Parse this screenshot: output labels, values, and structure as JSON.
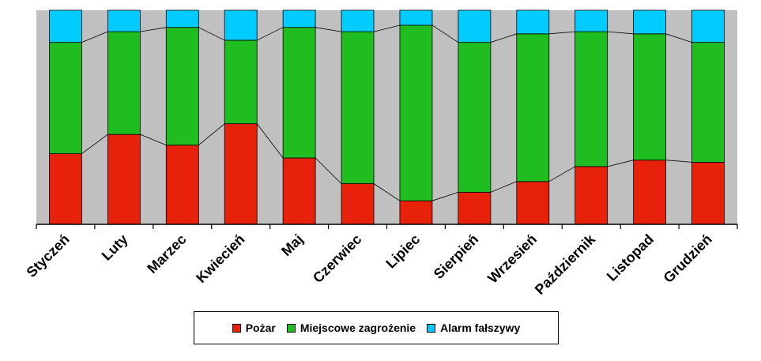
{
  "chart_data": {
    "type": "bar",
    "stacked": true,
    "percent_stacked": true,
    "categories": [
      "Styczeń",
      "Luty",
      "Marzec",
      "Kwiecień",
      "Maj",
      "Czerwiec",
      "Lipiec",
      "Sierpień",
      "Wrzesień",
      "Październik",
      "Listopad",
      "Grudzień"
    ],
    "series": [
      {
        "name": "Pożar",
        "color": "#e8220a",
        "values": [
          33,
          42,
          37,
          47,
          31,
          19,
          11,
          15,
          20,
          27,
          30,
          29
        ]
      },
      {
        "name": "Miejscowe zagrożenie",
        "color": "#1fbd1f",
        "values": [
          52,
          48,
          55,
          39,
          61,
          71,
          82,
          70,
          69,
          63,
          59,
          56
        ]
      },
      {
        "name": "Alarm fałszywy",
        "color": "#00ccff",
        "values": [
          15,
          10,
          8,
          14,
          8,
          10,
          7,
          15,
          11,
          10,
          11,
          15
        ]
      }
    ],
    "ylim": [
      0,
      100
    ],
    "series_lines": true,
    "plot_background": "#c0c0c0",
    "legend_position": "bottom"
  }
}
